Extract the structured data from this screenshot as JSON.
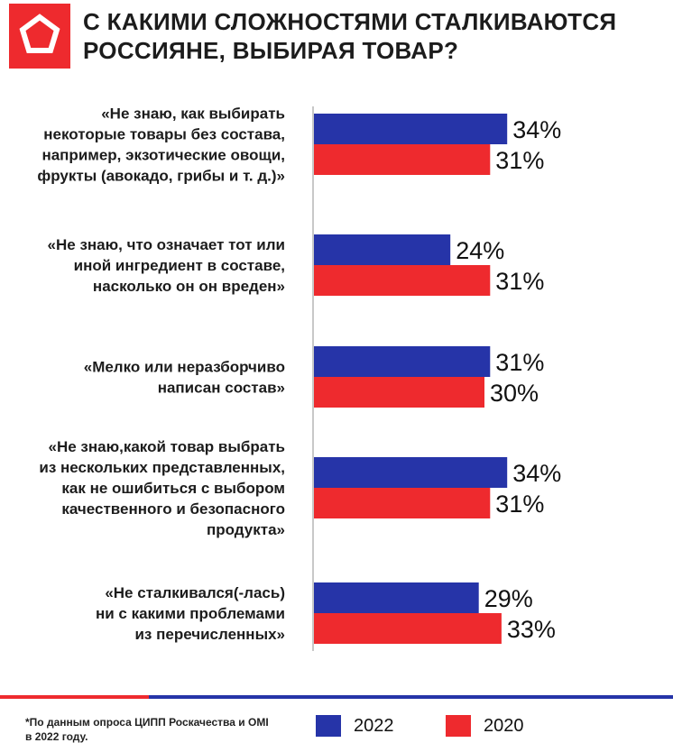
{
  "header": {
    "title_line1": "С КАКИМИ СЛОЖНОСТЯМИ СТАЛКИВАЮТСЯ",
    "title_line2": "РОССИЯНЕ, ВЫБИРАЯ ТОВАР?",
    "logo_icon": "pentagon-logo-icon"
  },
  "colors": {
    "brand_red": "#ee2a2e",
    "series_2022": "#2634a8",
    "series_2020": "#ee2a2e"
  },
  "chart_data": {
    "type": "bar",
    "orientation": "horizontal",
    "categories": [
      [
        "«Не знаю, как выбирать",
        "некоторые товары без состава,",
        "например, экзотические овощи,",
        "фрукты (авокадо, грибы и т. д.)»"
      ],
      [
        "«Не знаю, что означает тот или",
        "иной ингредиент в составе,",
        "насколько он он вреден»"
      ],
      [
        "«Мелко или неразборчиво",
        "написан состав»"
      ],
      [
        "«Не знаю,какой товар выбрать",
        "из нескольких представленных,",
        "как не ошибиться с выбором",
        "качественного и безопасного",
        "продукта»"
      ],
      [
        "«Не сталкивался(-лась)",
        "ни с какими проблемами",
        "из перечисленных»"
      ]
    ],
    "series": [
      {
        "name": "2022",
        "values": [
          34,
          24,
          31,
          34,
          29
        ],
        "labels": [
          "34%",
          "24%",
          "31%",
          "34%",
          "29%"
        ]
      },
      {
        "name": "2020",
        "values": [
          31,
          31,
          30,
          31,
          33
        ],
        "labels": [
          "31%",
          "31%",
          "30%",
          "31%",
          "33%"
        ]
      }
    ],
    "legend_position": "bottom"
  },
  "footer": {
    "note_line1": "*По данным опроса ЦИПП Роскачества и OMI",
    "note_line2": "в 2022 году."
  }
}
